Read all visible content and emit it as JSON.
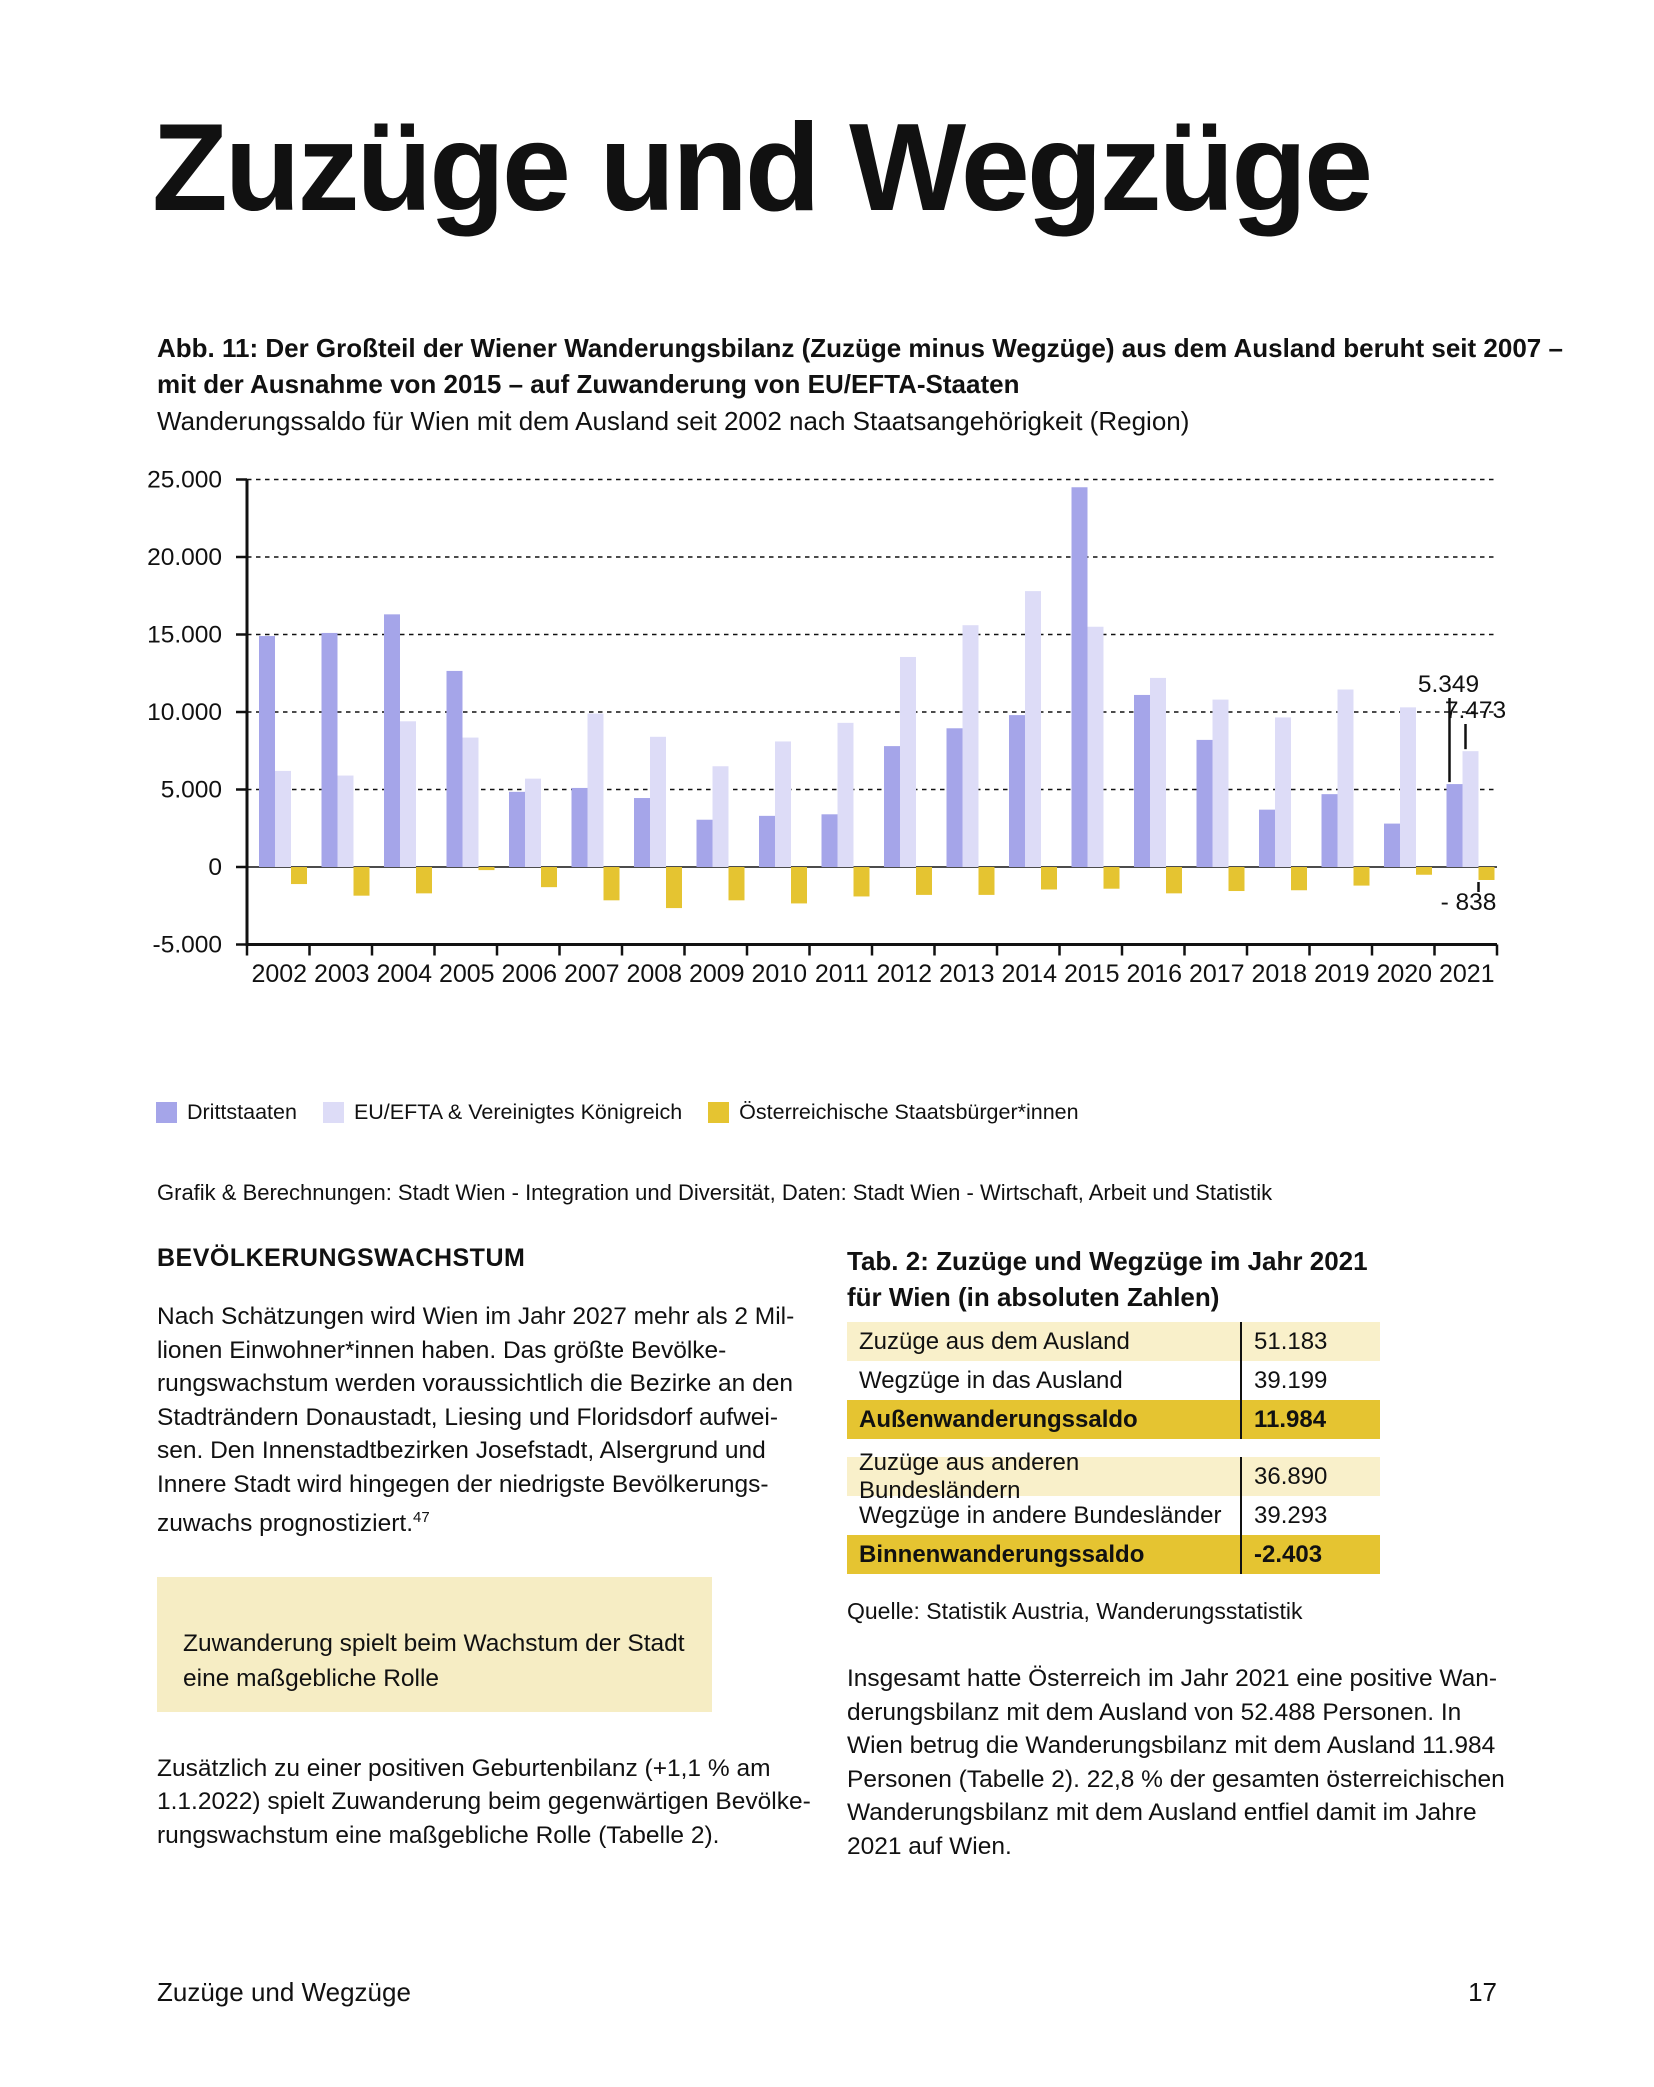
{
  "page": {
    "title": "Zuzüge und Wegzüge",
    "footer_left": "Zuzüge und Wegzüge",
    "page_number": "17"
  },
  "figure": {
    "caption_bold": "Abb. 11: Der Großteil der Wiener Wanderungsbilanz (Zuzüge minus Wegzüge) aus dem Ausland beruht seit 2007 –\nmit der Ausnahme von 2015 – auf Zuwanderung von EU/EFTA-Staaten",
    "caption_sub": "Wanderungssaldo für Wien mit dem Ausland seit 2002 nach Staatsangehörigkeit (Region)",
    "source": "Grafik & Berechnungen: Stadt Wien - Integration und Diversität, Daten: Stadt Wien - Wirtschaft, Arbeit und Statistik"
  },
  "chart_data": {
    "type": "bar",
    "title": "Wanderungssaldo für Wien mit dem Ausland seit 2002 nach Staatsangehörigkeit (Region)",
    "categories": [
      "2002",
      "2003",
      "2004",
      "2005",
      "2006",
      "2007",
      "2008",
      "2009",
      "2010",
      "2011",
      "2012",
      "2013",
      "2014",
      "2015",
      "2016",
      "2017",
      "2018",
      "2019",
      "2020",
      "2021"
    ],
    "series": [
      {
        "name": "Drittstaaten",
        "color": "#a5a5e9",
        "values": [
          14900,
          15100,
          16300,
          12650,
          4850,
          5100,
          4450,
          3050,
          3300,
          3400,
          7800,
          8950,
          9800,
          24500,
          11100,
          8200,
          3700,
          4700,
          2800,
          5349
        ]
      },
      {
        "name": "EU/EFTA & Vereinigtes Königreich",
        "color": "#dddcf7",
        "values": [
          6200,
          5900,
          9400,
          8350,
          5700,
          9900,
          8400,
          6500,
          8100,
          9300,
          13550,
          15600,
          17800,
          15500,
          12200,
          10800,
          9650,
          11450,
          10300,
          7473
        ]
      },
      {
        "name": "Österreichische Staatsbürger*innen",
        "color": "#e5c431",
        "values": [
          -1100,
          -1850,
          -1700,
          -200,
          -1300,
          -2150,
          -2650,
          -2150,
          -2350,
          -1900,
          -1800,
          -1800,
          -1450,
          -1400,
          -1700,
          -1550,
          -1500,
          -1200,
          -500,
          -838
        ]
      }
    ],
    "ylim": [
      -5000,
      25000
    ],
    "yticks": [
      {
        "value": 25000,
        "label": "25.000"
      },
      {
        "value": 20000,
        "label": "20.000"
      },
      {
        "value": 15000,
        "label": "15.000"
      },
      {
        "value": 10000,
        "label": "10.000"
      },
      {
        "value": 5000,
        "label": "5.000"
      },
      {
        "value": 0,
        "label": "0"
      },
      {
        "value": -5000,
        "label": "-5.000"
      }
    ],
    "grid": "horizontal-dashed",
    "legend_position": "bottom",
    "annotations": [
      {
        "label": "5.349",
        "series": 0,
        "year": 19
      },
      {
        "label": "7.473",
        "series": 1,
        "year": 19
      },
      {
        "label": "- 838",
        "series": 2,
        "year": 19
      }
    ]
  },
  "left_column": {
    "heading": "BEVÖLKERUNGSWACHSTUM",
    "para1": "Nach Schätzungen wird Wien im Jahr 2027 mehr als 2 Mil-\nlionen Einwohner*innen haben. Das größte Bevölke-\nrungswachstum werden voraussichtlich die Bezirke an den\nStadträndern Donaustadt, Liesing und Floridsdorf aufwei-\nsen. Den Innenstadtbezirken Josefstadt, Alsergrund und\nInnere Stadt wird hingegen der niedrigste Bevölkerungs-\nzuwachs prognostiziert.",
    "footnote": "47",
    "box_text": "Zuwanderung spielt beim Wachstum der Stadt\neine maßgebliche Rolle",
    "para2": "Zusätzlich zu einer positiven Geburtenbilanz (+1,1 % am\n1.1.2022) spielt Zuwanderung beim gegenwärtigen Bevölke-\nrungswachstum eine maßgebliche Rolle (Tabelle 2)."
  },
  "right_column": {
    "table_heading": "Tab. 2: Zuzüge und Wegzüge im Jahr 2021\nfür Wien (in absoluten Zahlen)",
    "table_external": {
      "rows": [
        {
          "label": "Zuzüge aus dem Ausland",
          "value": "51.183"
        },
        {
          "label": "Wegzüge in das Ausland",
          "value": "39.199"
        },
        {
          "label": "Außenwanderungssaldo",
          "value": "11.984"
        }
      ]
    },
    "table_internal": {
      "rows": [
        {
          "label": "Zuzüge aus anderen Bundesländern",
          "value": "36.890"
        },
        {
          "label": "Wegzüge in andere Bundesländer",
          "value": "39.293"
        },
        {
          "label": "Binnenwanderungssaldo",
          "value": "-2.403"
        }
      ]
    },
    "table_source": "Quelle: Statistik Austria, Wanderungsstatistik",
    "para": "Insgesamt hatte Österreich im Jahr 2021 eine positive Wan-\nderungsbilanz mit dem Ausland von 52.488 Personen. In\nWien betrug die Wanderungsbilanz mit dem Ausland 11.984\nPersonen (Tabelle 2). 22,8 % der gesamten österreichischen\nWanderungsbilanz mit dem Ausland entfiel damit im Jahre\n2021 auf Wien."
  },
  "colors": {
    "drittstaaten": "#a5a5e9",
    "eu_efta": "#dddcf7",
    "austrian": "#e5c431",
    "gold_row": "#e5c431",
    "light_row": "#f9f0ca",
    "highlight_box": "#f6edc4"
  }
}
